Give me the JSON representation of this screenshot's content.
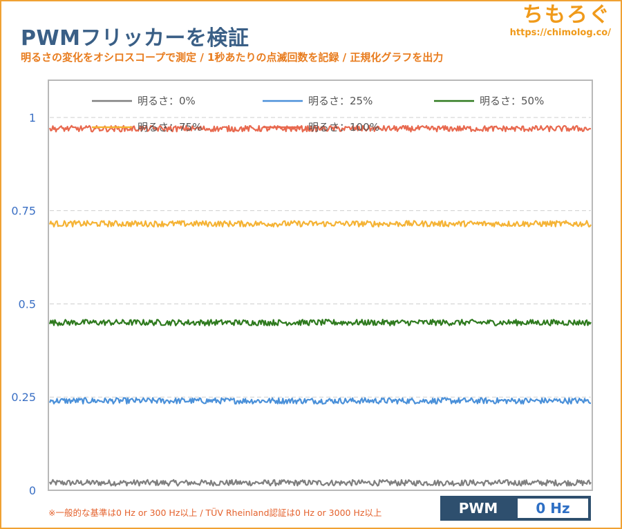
{
  "header": {
    "title": "PWMフリッカーを検証",
    "subtitle": "明るさの変化をオシロスコープで測定 / 1秒あたりの点滅回数を記録 / 正規化グラフを出力"
  },
  "logo": {
    "text": "ちもろぐ",
    "url": "https://chimolog.co/"
  },
  "footnote": "※一般的な基準は0 Hz or 300 Hz以上 / TÜV Rheinland認証は0 Hz or 3000 Hz以上",
  "badge": {
    "label": "PWM",
    "value": "0 Hz"
  },
  "chart_data": {
    "type": "line",
    "title": "",
    "xlabel": "",
    "ylabel": "",
    "ylim": [
      0,
      1.1
    ],
    "yticks": [
      {
        "value": 1,
        "label": "1"
      },
      {
        "value": 0.75,
        "label": "0.75"
      },
      {
        "value": 0.5,
        "label": "0.5"
      },
      {
        "value": 0.25,
        "label": "0.25"
      },
      {
        "value": 0,
        "label": "0"
      }
    ],
    "grid": "horizontal dashed",
    "legend_position": "top",
    "series": [
      {
        "name": "明るさ：0%",
        "color": "#7f7f7f",
        "mean": 0.02,
        "noise": 0.008
      },
      {
        "name": "明るさ：25%",
        "color": "#4a90d9",
        "mean": 0.24,
        "noise": 0.008
      },
      {
        "name": "明るさ：50%",
        "color": "#2e7a1e",
        "mean": 0.45,
        "noise": 0.008
      },
      {
        "name": "明るさ：75%",
        "color": "#f5b335",
        "mean": 0.715,
        "noise": 0.008
      },
      {
        "name": "明るさ：100%",
        "color": "#e8694f",
        "mean": 0.97,
        "noise": 0.008
      }
    ]
  }
}
